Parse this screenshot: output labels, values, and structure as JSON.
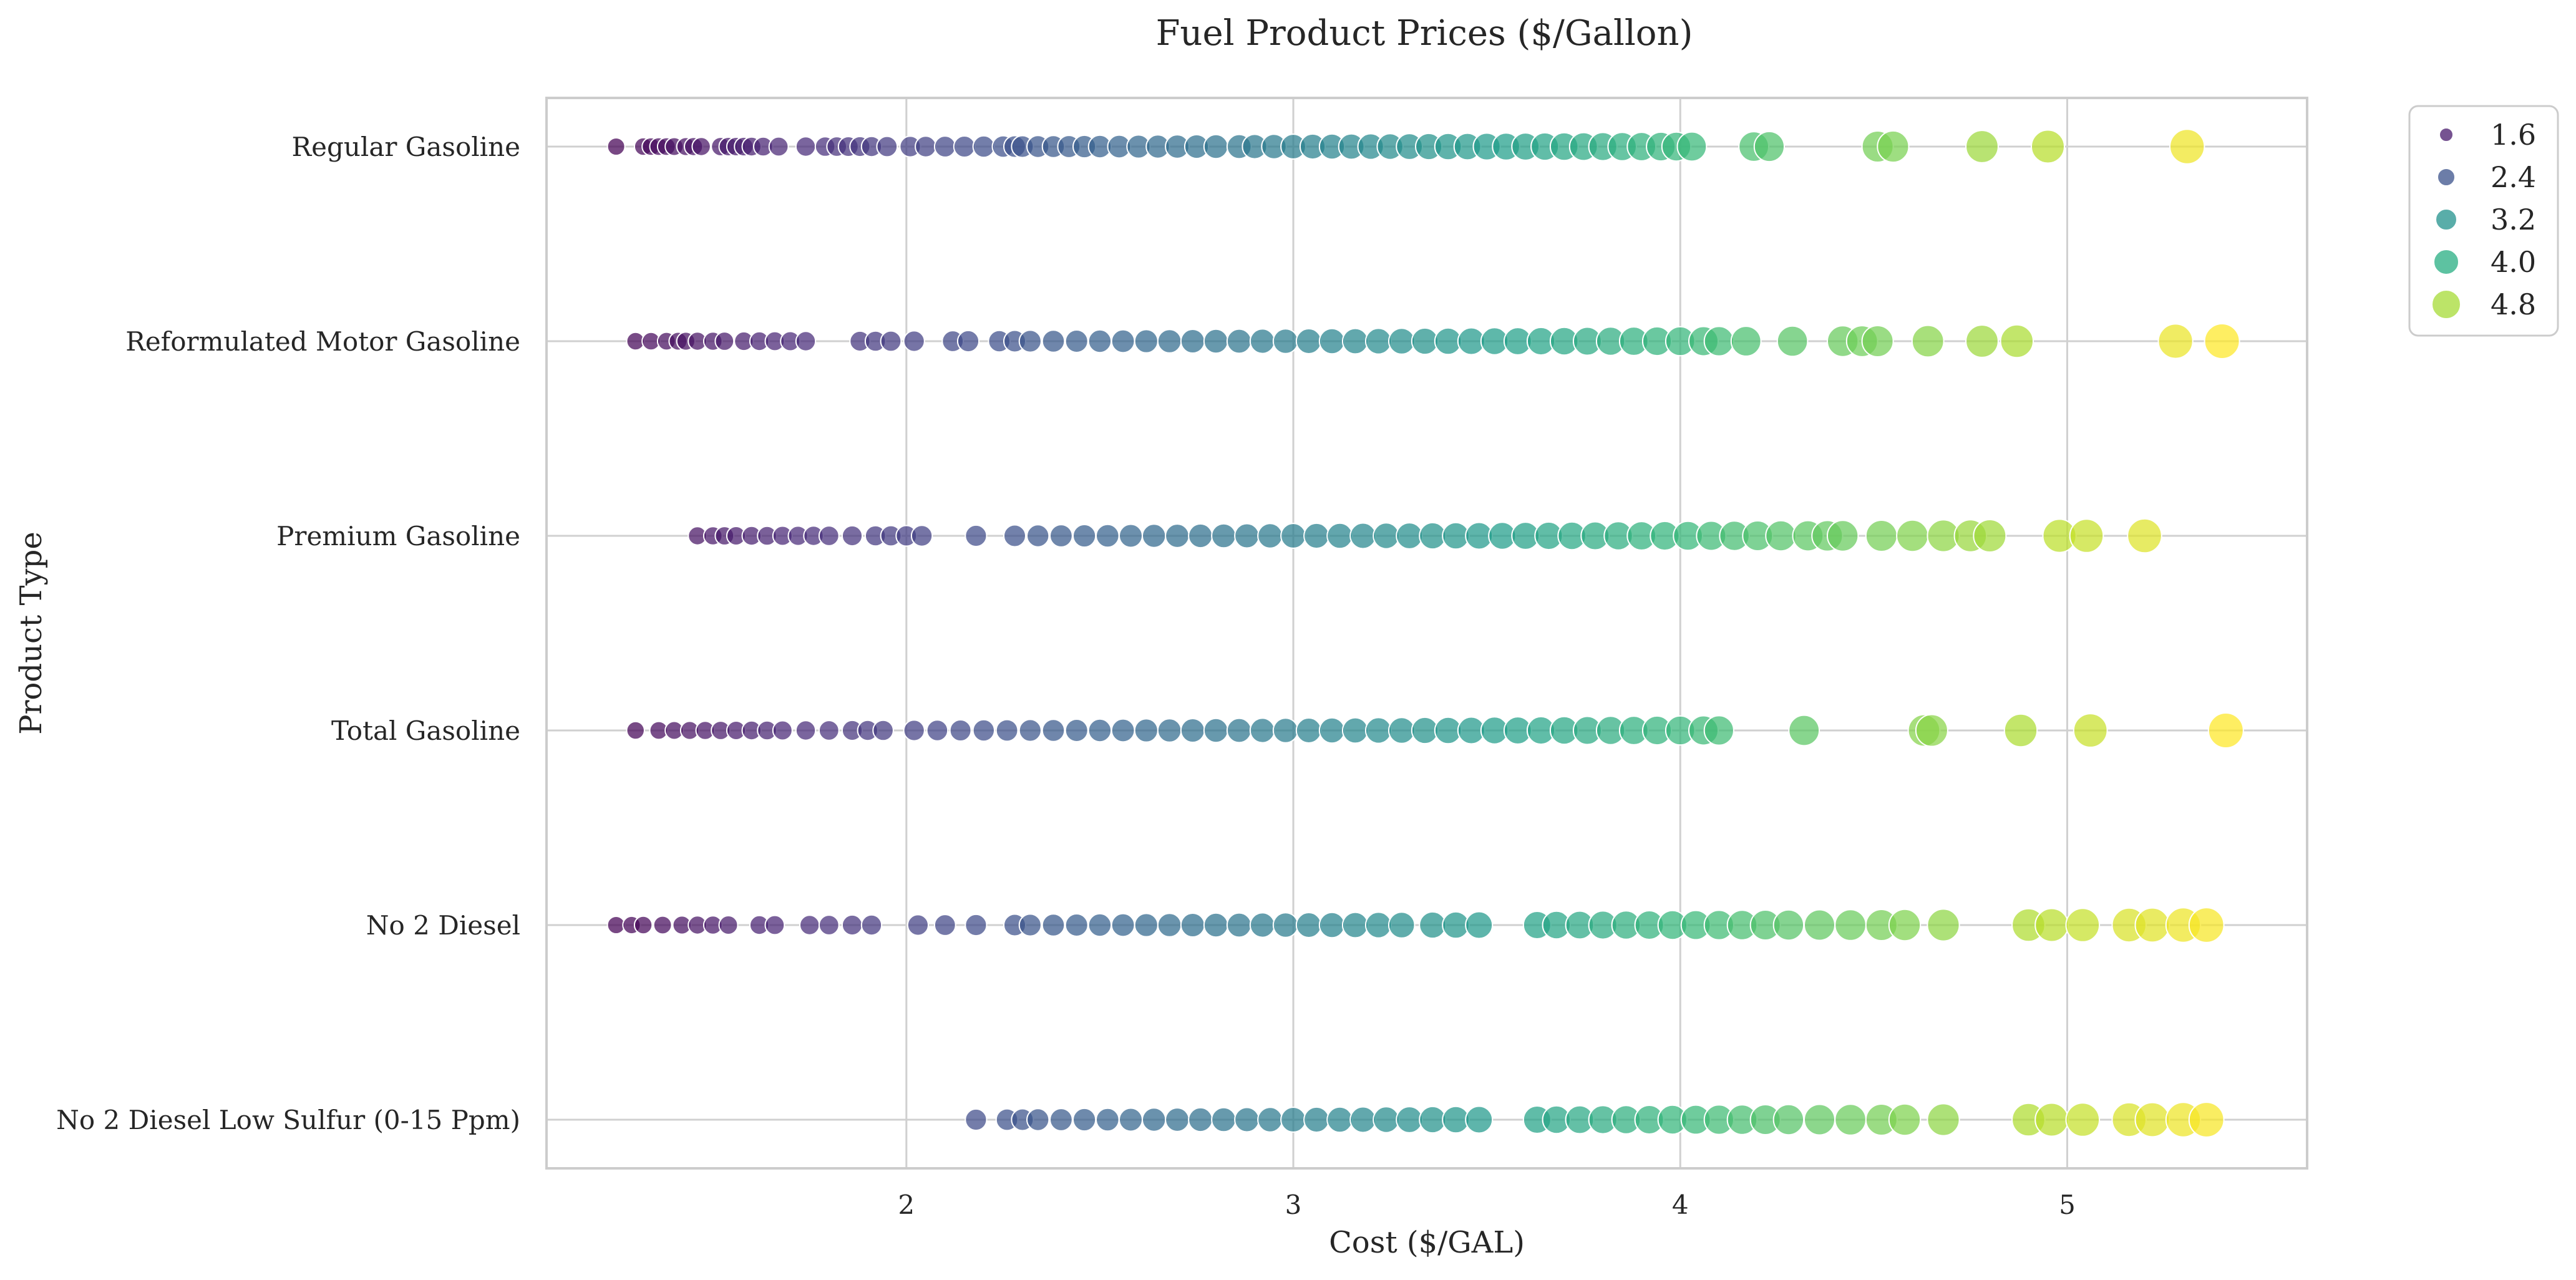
{
  "chart_data": {
    "type": "scatter",
    "title": "Fuel Product Prices ($/Gallon)",
    "xlabel": "Cost ($/GAL)",
    "ylabel": "Product Type",
    "xlim": [
      1.07,
      5.62
    ],
    "xticks": [
      "2",
      "3",
      "4",
      "5"
    ],
    "grid": true,
    "legend_position": "upper right, outside plot",
    "legend": {
      "entries": [
        {
          "label": "1.6",
          "color": "#481a6c"
        },
        {
          "label": "2.4",
          "color": "#3b528b"
        },
        {
          "label": "3.2",
          "color": "#21918c"
        },
        {
          "label": "4.0",
          "color": "#27ad81"
        },
        {
          "label": "4.8",
          "color": "#a5db36"
        }
      ]
    },
    "color_scale": "viridis",
    "color_domain": [
      1.25,
      5.4
    ],
    "categories": [
      "Regular Gasoline",
      "Reformulated Motor Gasoline",
      "Premium Gasoline",
      "Total Gasoline",
      "No 2 Diesel",
      "No 2 Diesel Low Sulfur (0-15 Ppm)"
    ],
    "series": [
      {
        "category": "Regular Gasoline",
        "values": [
          1.25,
          1.32,
          1.34,
          1.36,
          1.38,
          1.4,
          1.43,
          1.45,
          1.47,
          1.52,
          1.54,
          1.56,
          1.58,
          1.6,
          1.63,
          1.67,
          1.74,
          1.79,
          1.82,
          1.85,
          1.88,
          1.91,
          1.95,
          2.01,
          2.05,
          2.1,
          2.15,
          2.2,
          2.25,
          2.28,
          2.3,
          2.34,
          2.38,
          2.42,
          2.46,
          2.5,
          2.55,
          2.6,
          2.65,
          2.7,
          2.75,
          2.8,
          2.86,
          2.9,
          2.95,
          3.0,
          3.05,
          3.1,
          3.15,
          3.2,
          3.25,
          3.3,
          3.35,
          3.4,
          3.45,
          3.5,
          3.55,
          3.6,
          3.65,
          3.7,
          3.75,
          3.8,
          3.85,
          3.9,
          3.95,
          3.99,
          4.03,
          4.19,
          4.23,
          4.51,
          4.55,
          4.78,
          4.95,
          5.31
        ]
      },
      {
        "category": "Reformulated Motor Gasoline",
        "values": [
          1.3,
          1.34,
          1.38,
          1.41,
          1.43,
          1.46,
          1.5,
          1.53,
          1.58,
          1.62,
          1.66,
          1.7,
          1.74,
          1.88,
          1.92,
          1.96,
          2.02,
          2.12,
          2.16,
          2.24,
          2.28,
          2.32,
          2.38,
          2.44,
          2.5,
          2.56,
          2.62,
          2.68,
          2.74,
          2.8,
          2.86,
          2.92,
          2.98,
          3.04,
          3.1,
          3.16,
          3.22,
          3.28,
          3.34,
          3.4,
          3.46,
          3.52,
          3.58,
          3.64,
          3.7,
          3.76,
          3.82,
          3.88,
          3.94,
          4.0,
          4.06,
          4.1,
          4.17,
          4.29,
          4.42,
          4.47,
          4.51,
          4.64,
          4.78,
          4.87,
          5.28,
          5.4
        ]
      },
      {
        "category": "Premium Gasoline",
        "values": [
          1.46,
          1.5,
          1.53,
          1.56,
          1.6,
          1.64,
          1.68,
          1.72,
          1.76,
          1.8,
          1.86,
          1.92,
          1.96,
          2.0,
          2.04,
          2.18,
          2.28,
          2.34,
          2.4,
          2.46,
          2.52,
          2.58,
          2.64,
          2.7,
          2.76,
          2.82,
          2.88,
          2.94,
          3.0,
          3.06,
          3.12,
          3.18,
          3.24,
          3.3,
          3.36,
          3.42,
          3.48,
          3.54,
          3.6,
          3.66,
          3.72,
          3.78,
          3.84,
          3.9,
          3.96,
          4.02,
          4.08,
          4.14,
          4.2,
          4.26,
          4.33,
          4.38,
          4.42,
          4.52,
          4.6,
          4.68,
          4.75,
          4.8,
          4.98,
          5.05,
          5.2
        ]
      },
      {
        "category": "Total Gasoline",
        "values": [
          1.3,
          1.36,
          1.4,
          1.44,
          1.48,
          1.52,
          1.56,
          1.6,
          1.64,
          1.68,
          1.74,
          1.8,
          1.86,
          1.9,
          1.94,
          2.02,
          2.08,
          2.14,
          2.2,
          2.26,
          2.32,
          2.38,
          2.44,
          2.5,
          2.56,
          2.62,
          2.68,
          2.74,
          2.8,
          2.86,
          2.92,
          2.98,
          3.04,
          3.1,
          3.16,
          3.22,
          3.28,
          3.34,
          3.4,
          3.46,
          3.52,
          3.58,
          3.64,
          3.7,
          3.76,
          3.82,
          3.88,
          3.94,
          4.0,
          4.06,
          4.1,
          4.32,
          4.63,
          4.65,
          4.88,
          5.06,
          5.41
        ]
      },
      {
        "category": "No 2 Diesel",
        "values": [
          1.25,
          1.29,
          1.32,
          1.37,
          1.42,
          1.46,
          1.5,
          1.54,
          1.62,
          1.66,
          1.75,
          1.8,
          1.86,
          1.91,
          2.03,
          2.1,
          2.18,
          2.28,
          2.32,
          2.38,
          2.44,
          2.5,
          2.56,
          2.62,
          2.68,
          2.74,
          2.8,
          2.86,
          2.92,
          2.98,
          3.04,
          3.1,
          3.16,
          3.22,
          3.28,
          3.36,
          3.42,
          3.48,
          3.63,
          3.68,
          3.74,
          3.8,
          3.86,
          3.92,
          3.98,
          4.04,
          4.1,
          4.16,
          4.22,
          4.28,
          4.36,
          4.44,
          4.52,
          4.58,
          4.68,
          4.9,
          4.96,
          5.04,
          5.16,
          5.22,
          5.3,
          5.36
        ]
      },
      {
        "category": "No 2 Diesel Low Sulfur (0-15 Ppm)",
        "values": [
          2.18,
          2.26,
          2.3,
          2.34,
          2.4,
          2.46,
          2.52,
          2.58,
          2.64,
          2.7,
          2.76,
          2.82,
          2.88,
          2.94,
          3.0,
          3.06,
          3.12,
          3.18,
          3.24,
          3.3,
          3.36,
          3.42,
          3.48,
          3.63,
          3.68,
          3.74,
          3.8,
          3.86,
          3.92,
          3.98,
          4.04,
          4.1,
          4.16,
          4.22,
          4.28,
          4.36,
          4.44,
          4.52,
          4.58,
          4.68,
          4.9,
          4.96,
          5.04,
          5.16,
          5.22,
          5.3,
          5.36
        ]
      }
    ]
  }
}
